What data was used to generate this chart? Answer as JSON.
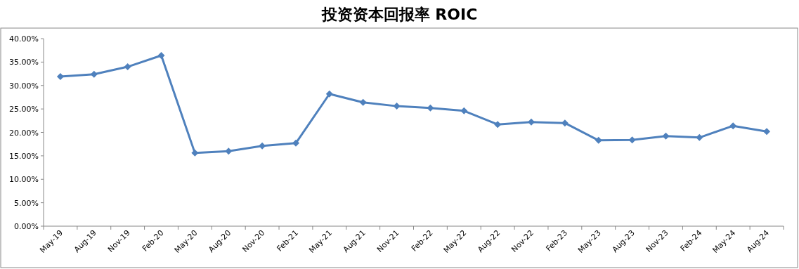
{
  "chart_data": {
    "type": "line",
    "title": "投资资本回报率 ROIC",
    "categories": [
      "May-19",
      "Aug-19",
      "Nov-19",
      "Feb-20",
      "May-20",
      "Aug-20",
      "Nov-20",
      "Feb-21",
      "May-21",
      "Aug-21",
      "Nov-21",
      "Feb-22",
      "May-22",
      "Aug-22",
      "Nov-22",
      "Feb-23",
      "May-23",
      "Aug-23",
      "Nov-23",
      "Feb-24",
      "May-24",
      "Aug-24"
    ],
    "series": [
      {
        "color": "#4f81bd",
        "values": [
          31.9,
          32.4,
          34.0,
          36.4,
          15.6,
          16.0,
          17.1,
          17.7,
          28.2,
          26.4,
          25.6,
          25.2,
          24.6,
          21.7,
          22.2,
          22.0,
          18.3,
          18.4,
          19.2,
          18.9,
          21.4,
          20.2
        ]
      }
    ],
    "ylim": [
      0,
      40
    ],
    "yticks": [
      {
        "value": 0,
        "label": "0.00%"
      },
      {
        "value": 5,
        "label": "5.00%"
      },
      {
        "value": 10,
        "label": "10.00%"
      },
      {
        "value": 15,
        "label": "15.00%"
      },
      {
        "value": 20,
        "label": "20.00%"
      },
      {
        "value": 25,
        "label": "25.00%"
      },
      {
        "value": 30,
        "label": "30.00%"
      },
      {
        "value": 35,
        "label": "35.00%"
      },
      {
        "value": 40,
        "label": "40.00%"
      }
    ],
    "marker": "diamond",
    "grid": false
  }
}
